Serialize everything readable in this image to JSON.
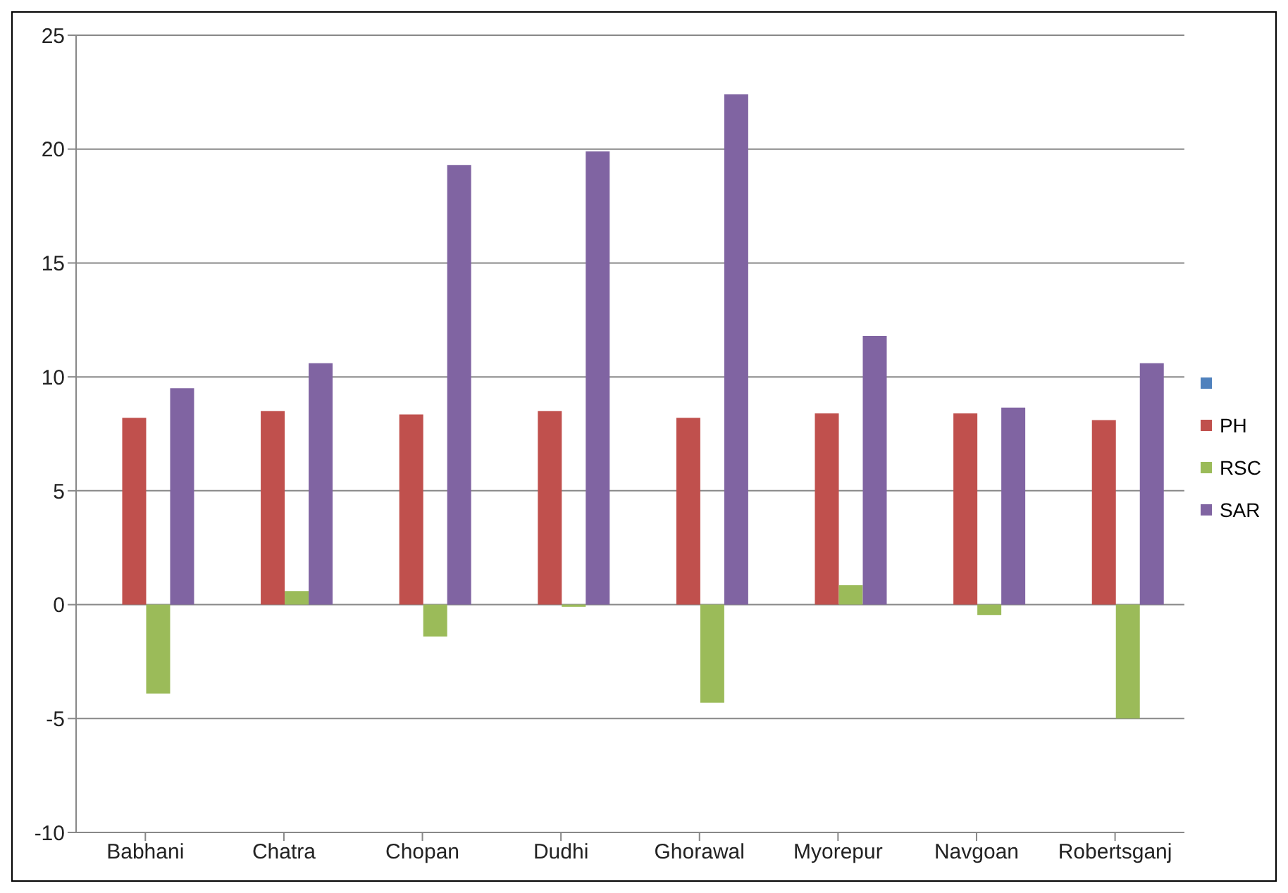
{
  "chart_data": {
    "type": "bar",
    "categories": [
      "Babhani",
      "Chatra",
      "Chopan",
      "Dudhi",
      "Ghorawal",
      "Myorepur",
      "Navgoan",
      "Robertsganj"
    ],
    "series": [
      {
        "color": "#4f81bd",
        "values": [
          null,
          null,
          null,
          null,
          null,
          null,
          null,
          null
        ]
      },
      {
        "name": "PH",
        "color": "#c0504d",
        "values": [
          8.2,
          8.5,
          8.35,
          8.5,
          8.2,
          8.4,
          8.4,
          8.1
        ]
      },
      {
        "name": "RSC",
        "color": "#9bbb59",
        "values": [
          -3.9,
          0.6,
          -1.4,
          -0.1,
          -4.3,
          0.85,
          -0.45,
          -5.0
        ]
      },
      {
        "name": "SAR",
        "color": "#8064a2",
        "values": [
          9.5,
          10.6,
          19.3,
          19.9,
          22.4,
          11.8,
          8.65,
          10.6
        ]
      }
    ],
    "ylim": [
      -10,
      25
    ],
    "yticks": [
      -10,
      -5,
      0,
      5,
      10,
      15,
      20,
      25
    ],
    "grid": "y",
    "legend": "right"
  }
}
